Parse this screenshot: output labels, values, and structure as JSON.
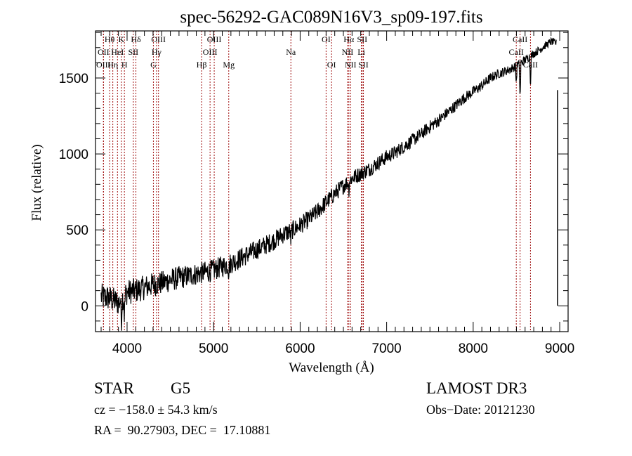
{
  "chart_data": {
    "type": "line",
    "title": "spec-56292-GAC089N16V3_sp09-197.fits",
    "xlabel": "Wavelength (Å)",
    "ylabel": "Flux (relative)",
    "xlim": [
      3635,
      9097
    ],
    "ylim": [
      -170,
      1810
    ],
    "xticks": [
      4000,
      5000,
      6000,
      7000,
      8000,
      9000
    ],
    "xtick_labels": [
      "4000",
      "5000",
      "6000",
      "7000",
      "8000",
      "9000"
    ],
    "yticks": [
      0,
      500,
      1000,
      1500
    ],
    "ytick_labels": [
      "0",
      "500",
      "1000",
      "1500"
    ],
    "grid": false,
    "series": [
      {
        "name": "flux",
        "color": "#000000",
        "anchors": [
          [
            3700,
            60
          ],
          [
            3800,
            50
          ],
          [
            3900,
            20
          ],
          [
            4000,
            90
          ],
          [
            4100,
            100
          ],
          [
            4200,
            120
          ],
          [
            4300,
            140
          ],
          [
            4400,
            150
          ],
          [
            4500,
            170
          ],
          [
            4600,
            185
          ],
          [
            4700,
            195
          ],
          [
            4800,
            210
          ],
          [
            4900,
            220
          ],
          [
            5000,
            235
          ],
          [
            5100,
            260
          ],
          [
            5200,
            280
          ],
          [
            5300,
            310
          ],
          [
            5400,
            340
          ],
          [
            5500,
            370
          ],
          [
            5600,
            400
          ],
          [
            5700,
            430
          ],
          [
            5800,
            470
          ],
          [
            5900,
            495
          ],
          [
            6000,
            530
          ],
          [
            6100,
            570
          ],
          [
            6200,
            620
          ],
          [
            6300,
            680
          ],
          [
            6400,
            740
          ],
          [
            6500,
            790
          ],
          [
            6600,
            840
          ],
          [
            6700,
            870
          ],
          [
            6800,
            900
          ],
          [
            6900,
            940
          ],
          [
            7000,
            980
          ],
          [
            7100,
            1010
          ],
          [
            7200,
            1050
          ],
          [
            7300,
            1090
          ],
          [
            7400,
            1130
          ],
          [
            7500,
            1180
          ],
          [
            7600,
            1220
          ],
          [
            7700,
            1270
          ],
          [
            7800,
            1320
          ],
          [
            7900,
            1370
          ],
          [
            8000,
            1410
          ],
          [
            8100,
            1450
          ],
          [
            8200,
            1500
          ],
          [
            8300,
            1530
          ],
          [
            8400,
            1550
          ],
          [
            8500,
            1580
          ],
          [
            8600,
            1620
          ],
          [
            8700,
            1660
          ],
          [
            8800,
            1700
          ],
          [
            8900,
            1740
          ],
          [
            8960,
            1730
          ]
        ],
        "noise_amplitude": {
          "blue_end": 110,
          "red_end": 30
        },
        "absorption_dips": [
          {
            "wavelength": 3934,
            "depth": 160
          },
          {
            "wavelength": 3969,
            "depth": 140
          },
          {
            "wavelength": 5175,
            "depth": 60
          },
          {
            "wavelength": 5893,
            "depth": 70
          },
          {
            "wavelength": 6563,
            "depth": 60
          },
          {
            "wavelength": 8498,
            "depth": 120
          },
          {
            "wavelength": 8542,
            "depth": 250
          },
          {
            "wavelength": 8662,
            "depth": 200
          }
        ],
        "tail_segment": {
          "wavelength": 8975,
          "values": [
            1420,
            0
          ]
        }
      }
    ],
    "spectral_lines": [
      {
        "label": "Hθ",
        "wavelength": 3798,
        "row": 0
      },
      {
        "label": "K",
        "wavelength": 3934,
        "row": 0
      },
      {
        "label": "Hδ",
        "wavelength": 4102,
        "row": 0
      },
      {
        "label": "OIII",
        "wavelength": 4363,
        "row": 0
      },
      {
        "label": "OIII",
        "wavelength": 5007,
        "row": 0
      },
      {
        "label": "OI",
        "wavelength": 6300,
        "row": 0
      },
      {
        "label": "Hα",
        "wavelength": 6563,
        "row": 0
      },
      {
        "label": "SII",
        "wavelength": 6717,
        "row": 0
      },
      {
        "label": "CaII",
        "wavelength": 8542,
        "row": 0
      },
      {
        "label": "OII",
        "wavelength": 3727,
        "row": 1
      },
      {
        "label": "HeI",
        "wavelength": 3889,
        "row": 1
      },
      {
        "label": "SII",
        "wavelength": 4072,
        "row": 1
      },
      {
        "label": "Hγ",
        "wavelength": 4340,
        "row": 1
      },
      {
        "label": "OIII",
        "wavelength": 4959,
        "row": 1
      },
      {
        "label": "Na",
        "wavelength": 5893,
        "row": 1
      },
      {
        "label": "NII",
        "wavelength": 6548,
        "row": 1
      },
      {
        "label": "Li",
        "wavelength": 6708,
        "row": 1
      },
      {
        "label": "CaII",
        "wavelength": 8498,
        "row": 1
      },
      {
        "label": "OIII",
        "wavelength": 3727,
        "row": 2
      },
      {
        "label": "Hη",
        "wavelength": 3835,
        "row": 2
      },
      {
        "label": "H",
        "wavelength": 3969,
        "row": 2
      },
      {
        "label": "G",
        "wavelength": 4304,
        "row": 2
      },
      {
        "label": "Hβ",
        "wavelength": 4861,
        "row": 2
      },
      {
        "label": "Mg",
        "wavelength": 5175,
        "row": 2
      },
      {
        "label": "OI",
        "wavelength": 6363,
        "row": 2
      },
      {
        "label": "NII",
        "wavelength": 6583,
        "row": 2
      },
      {
        "label": "SII",
        "wavelength": 6731,
        "row": 2
      },
      {
        "label": "CaII",
        "wavelength": 8662,
        "row": 2
      }
    ],
    "line_marker_color": "#a01010"
  },
  "footer": {
    "object_class": "STAR",
    "subclass": "G5",
    "survey": "LAMOST DR3",
    "redshift": "cz = −158.0 ± 54.3 km/s",
    "obs_date": "Obs−Date: 20121230",
    "coords": "RA =  90.27903, DEC =  17.10881"
  }
}
